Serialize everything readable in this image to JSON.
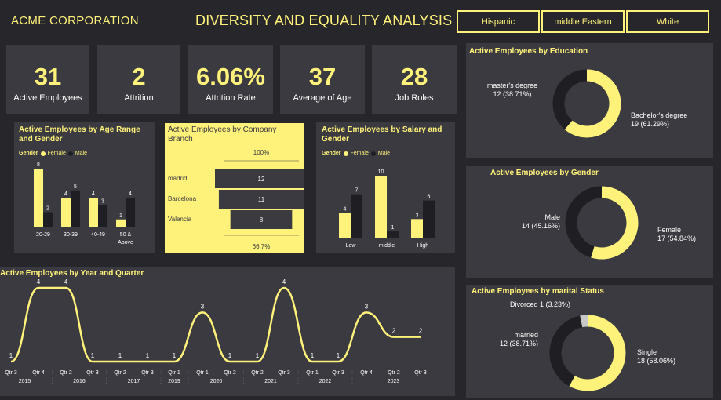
{
  "header": {
    "brand": "ACME CORPORATION",
    "title": "DIVERSITY AND EQUALITY ANALYSIS",
    "filters": [
      "Hispanic",
      "middle Eastern",
      "White"
    ]
  },
  "kpis": [
    {
      "value": "31",
      "label": "Active Employees"
    },
    {
      "value": "2",
      "label": "Attrition"
    },
    {
      "value": "6.06%",
      "label": "Attrition Rate"
    },
    {
      "value": "37",
      "label": "Average of Age"
    },
    {
      "value": "28",
      "label": "Job Roles"
    }
  ],
  "colors": {
    "accent": "#fff27a",
    "panel": "#3a3a40",
    "background": "#26262b",
    "dark_bar": "#1f1f23"
  },
  "age_chart": {
    "title": "Active Employees by Age Range and Gender",
    "legend_title": "Gender",
    "legend": [
      "Female",
      "Male"
    ],
    "chart_data": {
      "type": "bar",
      "categories": [
        "20-29",
        "30-39",
        "40-49",
        "50 & Above"
      ],
      "series": [
        {
          "name": "Female",
          "values": [
            8,
            4,
            4,
            1
          ]
        },
        {
          "name": "Male",
          "values": [
            2,
            5,
            3,
            4
          ]
        }
      ]
    }
  },
  "branch_chart": {
    "title": "Active Employees by Company Branch",
    "top_label": "100%",
    "bottom_label": "66.7%",
    "chart_data": {
      "type": "bar",
      "categories": [
        "madrid",
        "Barcelona",
        "Valencia"
      ],
      "values": [
        12,
        11,
        8
      ]
    }
  },
  "salary_chart": {
    "title": "Active Employees by Salary and Gender",
    "legend_title": "Gender",
    "legend": [
      "Female",
      "Male"
    ],
    "chart_data": {
      "type": "bar",
      "categories": [
        "Low",
        "middle",
        "High"
      ],
      "series": [
        {
          "name": "Female",
          "values": [
            4,
            10,
            3
          ]
        },
        {
          "name": "Male",
          "values": [
            7,
            1,
            6
          ]
        }
      ]
    }
  },
  "quarter_chart": {
    "title": "Active Employees by Year and Quarter",
    "chart_data": {
      "type": "line",
      "x": [
        "Qtr 3",
        "Qtr 4",
        "Qtr 2",
        "Qtr 3",
        "Qtr 2",
        "Qtr 3",
        "Qtr 1",
        "Qtr 1",
        "Qtr 2",
        "Qtr 2",
        "Qtr 3",
        "Qtr 1",
        "Qtr 3",
        "Qtr 4",
        "Qtr 2",
        "Qtr 3"
      ],
      "values": [
        1,
        4,
        4,
        1,
        1,
        1,
        1,
        3,
        1,
        1,
        4,
        1,
        1,
        3,
        2,
        2
      ],
      "years": [
        {
          "label": "2015",
          "span": [
            0,
            1
          ]
        },
        {
          "label": "2016",
          "span": [
            2,
            3
          ]
        },
        {
          "label": "2017",
          "span": [
            4,
            5
          ]
        },
        {
          "label": "2019",
          "span": [
            6,
            6
          ]
        },
        {
          "label": "2020",
          "span": [
            7,
            8
          ]
        },
        {
          "label": "2021",
          "span": [
            9,
            10
          ]
        },
        {
          "label": "2022",
          "span": [
            11,
            12
          ]
        },
        {
          "label": "2023",
          "span": [
            13,
            15
          ]
        }
      ]
    }
  },
  "education_chart": {
    "title": "Active Employees by Education",
    "chart_data": {
      "type": "pie",
      "slices": [
        {
          "label": "Bachelor's degree",
          "value": 19,
          "pct": "61.29%",
          "text": "19 (61.29%)"
        },
        {
          "label": "master's degree",
          "value": 12,
          "pct": "38.71%",
          "text": "12 (38.71%)"
        }
      ]
    }
  },
  "gender_chart": {
    "title": "Active Employees by Gender",
    "chart_data": {
      "type": "pie",
      "slices": [
        {
          "label": "Female",
          "value": 17,
          "pct": "54.84%",
          "text": "17 (54.84%)"
        },
        {
          "label": "Male",
          "value": 14,
          "pct": "45.16%",
          "text": "14 (45.16%)"
        }
      ]
    }
  },
  "marital_chart": {
    "title": "Active Employees by marital Status",
    "chart_data": {
      "type": "pie",
      "slices": [
        {
          "label": "Single",
          "value": 18,
          "pct": "58.06%",
          "text": "18 (58.06%)"
        },
        {
          "label": "married",
          "value": 12,
          "pct": "38.71%",
          "text": "12 (38.71%)"
        },
        {
          "label": "Divorced",
          "value": 1,
          "pct": "3.23%",
          "text": "Divorced 1 (3.23%)"
        }
      ]
    }
  }
}
